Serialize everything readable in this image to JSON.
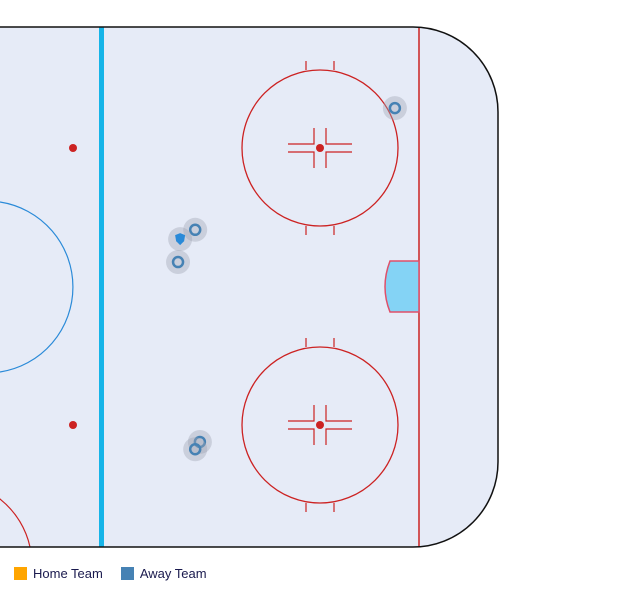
{
  "chart_data": {
    "type": "scatter",
    "units": "feet",
    "legend": [
      {
        "label": "Home Team",
        "color": "#ffa500"
      },
      {
        "label": "Away Team",
        "color": "#4682b4"
      }
    ],
    "events": [
      {
        "team": "Away Team",
        "type": "shot",
        "x": 46,
        "y": 11
      },
      {
        "team": "Away Team",
        "type": "goal",
        "x": 43.1,
        "y": 9.2
      },
      {
        "team": "Away Team",
        "type": "shot",
        "x": 42.7,
        "y": 4.8
      },
      {
        "team": "Away Team",
        "type": "shot",
        "x": 84.4,
        "y": 34.4
      },
      {
        "team": "Away Team",
        "type": "shot",
        "x": 46.9,
        "y": -29.8
      },
      {
        "team": "Away Team",
        "type": "shot",
        "x": 46,
        "y": -31.2
      }
    ],
    "colors": {
      "ice": "#e6ebf7",
      "red_line": "#cc2222",
      "blue_line": "#16b4e8",
      "crease": "#84d3f5",
      "border": "#111111"
    }
  }
}
